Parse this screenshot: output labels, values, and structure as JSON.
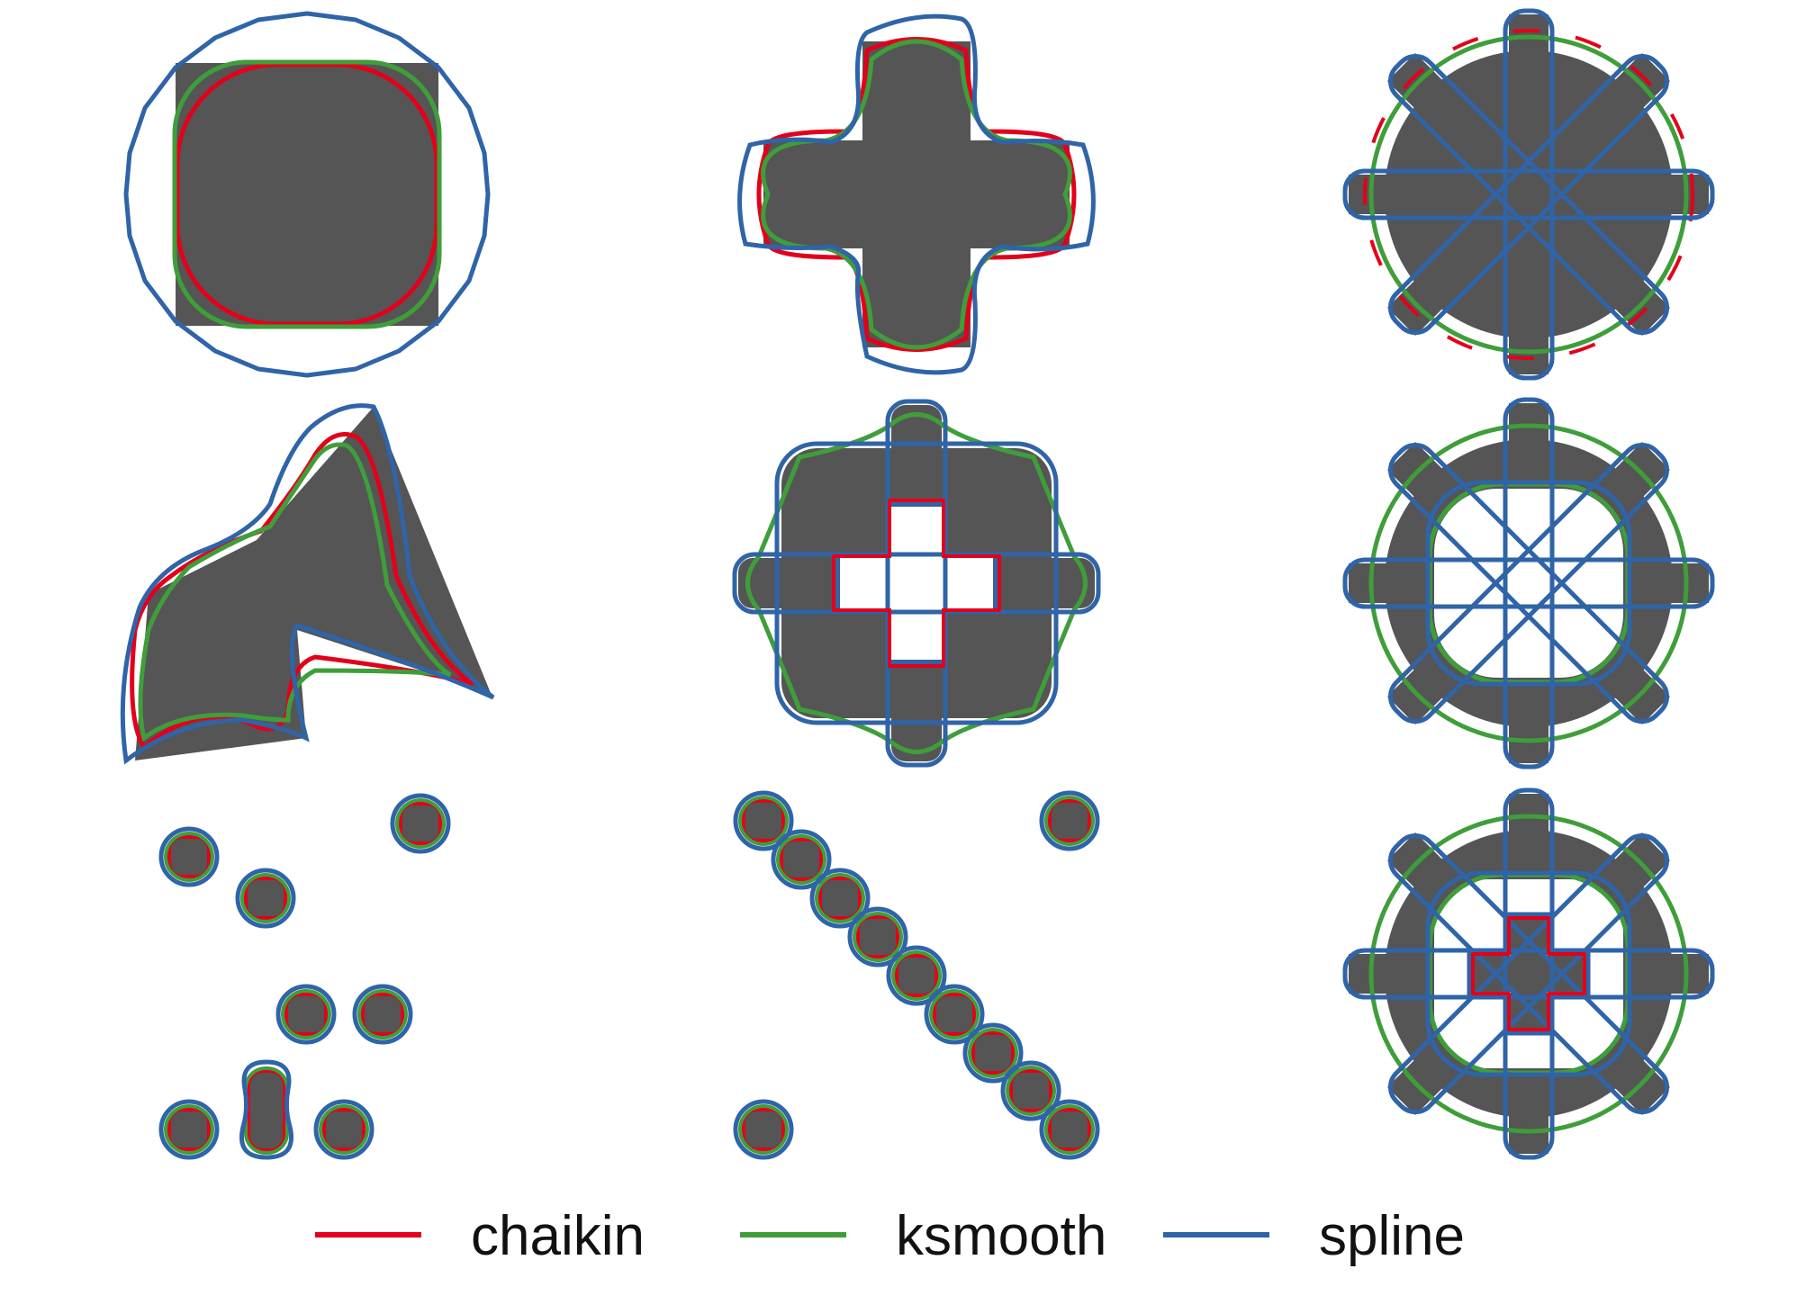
{
  "legend": {
    "items": [
      {
        "label": "chaikin",
        "color": "#e3001b"
      },
      {
        "label": "ksmooth",
        "color": "#3f9e3a"
      },
      {
        "label": "spline",
        "color": "#2f64a8"
      }
    ]
  },
  "colors": {
    "fill": "#555555",
    "chaikin": "#e3001b",
    "ksmooth": "#3f9e3a",
    "spline": "#2f64a8",
    "background": "#ffffff"
  }
}
